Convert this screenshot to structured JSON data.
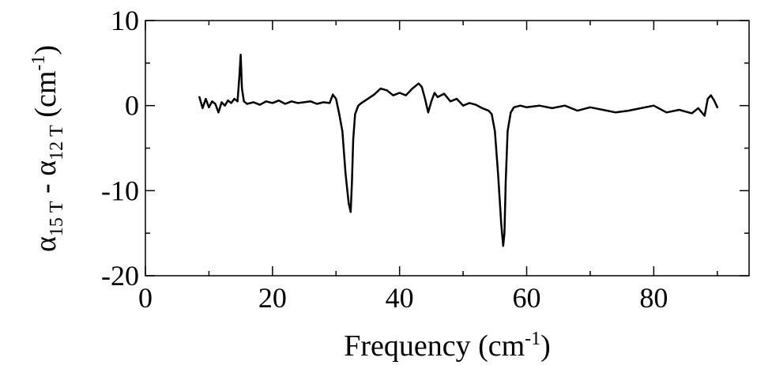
{
  "chart_data": {
    "type": "line",
    "xlabel": "Frequency (cm",
    "xlabel_sup": "-1",
    "xlabel_end": ")",
    "ylabel_alpha": "α",
    "ylabel_sub1": "15 T",
    "ylabel_dash": " - ",
    "ylabel_sub2": "12 T",
    "ylabel_unit": " (cm",
    "ylabel_sup": "-1",
    "ylabel_end": ")",
    "xlim": [
      0,
      95
    ],
    "ylim": [
      -20,
      10
    ],
    "x_ticks": [
      0,
      20,
      40,
      60,
      80
    ],
    "y_ticks": [
      10,
      0,
      -10,
      -20
    ],
    "x_tick_labels": [
      "0",
      "20",
      "40",
      "60",
      "80"
    ],
    "y_tick_labels": [
      "10",
      "0",
      "-10",
      "-20"
    ],
    "grid": false,
    "color": "#000000",
    "series": [
      {
        "x": [
          8.5,
          9.0,
          9.5,
          10.0,
          10.5,
          11.0,
          11.5,
          12.0,
          12.5,
          13.0,
          13.5,
          14.0,
          14.5,
          14.8,
          15.0,
          15.2,
          15.5,
          16.0,
          17.0,
          18.0,
          19.0,
          20.0,
          21.0,
          22.0,
          23.0,
          24.0,
          25.0,
          26.0,
          27.0,
          28.0,
          29.0,
          29.5,
          30.0,
          30.5,
          31.0,
          31.5,
          32.0,
          32.3,
          32.5,
          32.7,
          33.0,
          33.5,
          34.0,
          35.0,
          36.0,
          37.0,
          38.0,
          39.0,
          40.0,
          41.0,
          42.0,
          43.0,
          43.5,
          44.0,
          44.5,
          45.0,
          45.5,
          46.0,
          47.0,
          48.0,
          49.0,
          50.0,
          51.0,
          52.0,
          53.0,
          54.0,
          54.5,
          55.0,
          55.5,
          56.0,
          56.3,
          56.5,
          56.7,
          57.0,
          57.5,
          58.0,
          59.0,
          60.0,
          62.0,
          64.0,
          66.0,
          68.0,
          70.0,
          72.0,
          74.0,
          76.0,
          78.0,
          80.0,
          82.0,
          84.0,
          86.0,
          87.0,
          88.0,
          88.5,
          89.0,
          89.5,
          90.0
        ],
        "y": [
          1.0,
          -0.3,
          0.8,
          -0.2,
          0.5,
          0.2,
          -0.8,
          0.4,
          0.0,
          0.6,
          0.3,
          0.8,
          0.5,
          3.5,
          6.0,
          2.0,
          0.5,
          0.2,
          0.4,
          0.1,
          0.5,
          0.3,
          0.6,
          0.2,
          0.5,
          0.3,
          0.4,
          0.5,
          0.2,
          0.4,
          0.3,
          1.3,
          0.8,
          -1.0,
          -3.0,
          -8.0,
          -11.5,
          -12.5,
          -9.0,
          -4.0,
          -1.0,
          0.0,
          0.3,
          0.8,
          1.3,
          2.0,
          1.8,
          1.2,
          1.5,
          1.2,
          2.0,
          2.6,
          2.2,
          0.8,
          -0.8,
          0.5,
          1.5,
          1.0,
          1.4,
          0.5,
          0.8,
          0.0,
          0.3,
          0.1,
          -0.3,
          -0.6,
          -1.0,
          -3.0,
          -8.0,
          -14.0,
          -16.5,
          -15.0,
          -9.0,
          -3.0,
          -0.8,
          -0.2,
          0.0,
          -0.2,
          0.0,
          -0.3,
          0.0,
          -0.6,
          -0.2,
          -0.5,
          -0.8,
          -0.6,
          -0.3,
          0.0,
          -0.8,
          -0.5,
          -0.9,
          -0.3,
          -1.2,
          0.8,
          1.2,
          0.6,
          -0.2
        ]
      }
    ]
  }
}
